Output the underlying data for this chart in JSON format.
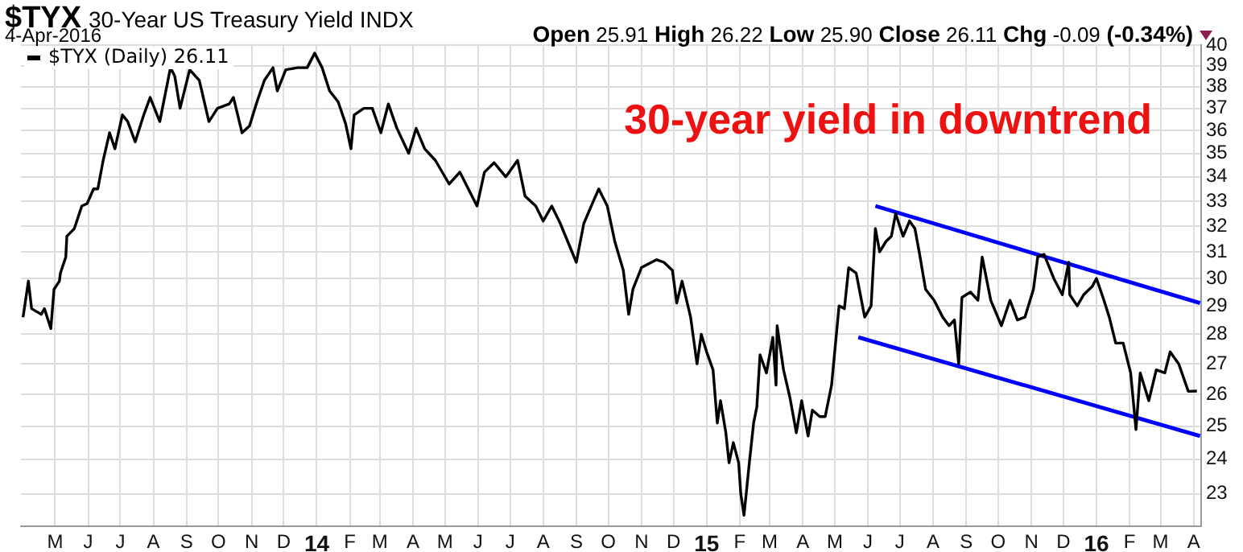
{
  "chart_data": {
    "type": "line",
    "title": "$TYX",
    "subtitle": "30-Year US Treasury Yield INDX",
    "annotations": [
      "4-Apr-2016",
      "Open 25.91 High 26.22 Low 25.90 Close 26.11 Chg -0.09 (-0.34%)",
      "30-year yield in downtrend"
    ],
    "series": [
      {
        "name": "$TYX (Daily) 26.11",
        "color": "#000000",
        "x": [
          "2013-04-01",
          "2013-04-06",
          "2013-04-09",
          "2013-04-18",
          "2013-04-21",
          "2013-04-27",
          "2013-04-30",
          "2013-05-05",
          "2013-05-06",
          "2013-05-11",
          "2013-05-12",
          "2013-05-19",
          "2013-05-26",
          "2013-05-31",
          "2013-06-06",
          "2013-06-10",
          "2013-06-15",
          "2013-06-21",
          "2013-06-26",
          "2013-07-03",
          "2013-07-08",
          "2013-07-15",
          "2013-07-23",
          "2013-07-29",
          "2013-08-07",
          "2013-08-17",
          "2013-08-21",
          "2013-08-26",
          "2013-09-04",
          "2013-09-13",
          "2013-09-22",
          "2013-09-30",
          "2013-10-11",
          "2013-10-15",
          "2013-10-23",
          "2013-10-30",
          "2013-11-06",
          "2013-11-13",
          "2013-11-21",
          "2013-11-25",
          "2013-12-03",
          "2013-12-14",
          "2013-12-23",
          "2013-12-30",
          "2014-01-06",
          "2014-01-13",
          "2014-01-21",
          "2014-01-28",
          "2014-02-02",
          "2014-02-05",
          "2014-02-14",
          "2014-02-22",
          "2014-03-02",
          "2014-03-09",
          "2014-03-17",
          "2014-03-28",
          "2014-04-04",
          "2014-04-12",
          "2014-04-22",
          "2014-05-05",
          "2014-05-15",
          "2014-05-31",
          "2014-06-07",
          "2014-06-16",
          "2014-06-27",
          "2014-07-08",
          "2014-07-15",
          "2014-07-25",
          "2014-08-01",
          "2014-08-09",
          "2014-08-17",
          "2014-09-01",
          "2014-09-08",
          "2014-09-16",
          "2014-09-22",
          "2014-09-30",
          "2014-10-07",
          "2014-10-15",
          "2014-10-20",
          "2014-10-24",
          "2014-11-01",
          "2014-11-15",
          "2014-11-22",
          "2014-11-30",
          "2014-12-04",
          "2014-12-09",
          "2014-12-17",
          "2014-12-23",
          "2014-12-27",
          "2015-01-01",
          "2015-01-07",
          "2015-01-11",
          "2015-01-14",
          "2015-01-19",
          "2015-01-22",
          "2015-01-26",
          "2015-01-31",
          "2015-02-02",
          "2015-02-05",
          "2015-02-10",
          "2015-02-14",
          "2015-02-17",
          "2015-02-20",
          "2015-02-26",
          "2015-03-04",
          "2015-03-07",
          "2015-03-08",
          "2015-03-14",
          "2015-03-20",
          "2015-03-26",
          "2015-03-31",
          "2015-04-06",
          "2015-04-10",
          "2015-04-17",
          "2015-04-22",
          "2015-04-28",
          "2015-05-05",
          "2015-05-10",
          "2015-05-14",
          "2015-05-21",
          "2015-05-29",
          "2015-06-04",
          "2015-06-08",
          "2015-06-12",
          "2015-06-18",
          "2015-06-23",
          "2015-06-27",
          "2015-06-30",
          "2015-07-04",
          "2015-07-10",
          "2015-07-15",
          "2015-07-19",
          "2015-07-25",
          "2015-08-02",
          "2015-08-10",
          "2015-08-16",
          "2015-08-21",
          "2015-08-25",
          "2015-08-28",
          "2015-09-05",
          "2015-09-12",
          "2015-09-16",
          "2015-09-24",
          "2015-10-04",
          "2015-10-12",
          "2015-10-19",
          "2015-10-26",
          "2015-11-03",
          "2015-11-07",
          "2015-11-13",
          "2015-11-22",
          "2015-11-30",
          "2015-12-06",
          "2015-12-07",
          "2015-12-14",
          "2015-12-20",
          "2015-12-28",
          "2016-01-01",
          "2016-01-08",
          "2016-01-13",
          "2016-01-19",
          "2016-01-26",
          "2016-02-02",
          "2016-02-07",
          "2016-02-11",
          "2016-02-19",
          "2016-02-26",
          "2016-03-05",
          "2016-03-10",
          "2016-03-18",
          "2016-03-22",
          "2016-03-27",
          "2016-04-04"
        ],
        "values": [
          28.6,
          29.9,
          28.9,
          28.7,
          28.9,
          28.2,
          29.6,
          29.9,
          30.2,
          30.8,
          31.6,
          31.9,
          32.8,
          32.9,
          33.5,
          33.5,
          34.7,
          35.9,
          35.2,
          36.7,
          36.4,
          35.5,
          36.7,
          37.5,
          36.4,
          38.9,
          38.5,
          37.0,
          38.8,
          38.3,
          36.4,
          37.0,
          37.2,
          37.5,
          35.9,
          36.2,
          37.3,
          38.3,
          38.9,
          37.8,
          38.8,
          38.9,
          38.9,
          39.6,
          38.9,
          37.8,
          37.3,
          36.3,
          35.2,
          36.7,
          37.0,
          37.0,
          35.9,
          37.2,
          36.1,
          35.0,
          36.1,
          35.2,
          34.7,
          33.7,
          34.2,
          32.8,
          34.2,
          34.6,
          34.0,
          34.7,
          33.2,
          32.8,
          32.2,
          32.8,
          32.1,
          30.6,
          32.1,
          32.9,
          33.5,
          32.8,
          31.4,
          30.3,
          28.7,
          29.6,
          30.4,
          30.7,
          30.6,
          30.3,
          29.1,
          29.9,
          28.6,
          27.0,
          28.0,
          27.4,
          26.8,
          25.1,
          25.8,
          24.8,
          23.9,
          24.5,
          23.9,
          23.0,
          22.4,
          23.9,
          25.1,
          25.6,
          27.3,
          26.7,
          27.9,
          26.3,
          28.3,
          26.8,
          25.9,
          24.8,
          25.8,
          24.7,
          25.5,
          25.3,
          25.3,
          26.3,
          29.0,
          28.9,
          30.4,
          30.2,
          28.6,
          29.0,
          31.9,
          31.0,
          31.4,
          31.6,
          32.5,
          32.1,
          31.6,
          32.2,
          31.9,
          31.0,
          29.6,
          29.2,
          28.6,
          28.3,
          28.5,
          27.0,
          29.3,
          29.5,
          29.2,
          30.8,
          29.2,
          28.3,
          29.2,
          28.5,
          28.6,
          29.6,
          30.8,
          30.9,
          30.0,
          29.4,
          30.6,
          29.4,
          29.0,
          29.4,
          29.7,
          30.0,
          29.2,
          28.6,
          27.7,
          27.7,
          26.7,
          24.9,
          26.7,
          25.8,
          26.8,
          26.7,
          27.4,
          27.0,
          26.6,
          26.1,
          26.11
        ]
      },
      {
        "type": "line",
        "color": "#0000ff",
        "x": [
          "2015-06-08",
          "2016-04-07"
        ],
        "values": [
          32.8,
          29.1
        ]
      },
      {
        "type": "line",
        "color": "#0000ff",
        "x": [
          "2015-05-23",
          "2016-04-07"
        ],
        "values": [
          27.9,
          24.7
        ]
      }
    ],
    "xlim": [
      "2013-03-30",
      "2016-04-08"
    ],
    "xticks": [
      {
        "value": "2013-05-01",
        "label": "M"
      },
      {
        "value": "2013-06-01",
        "label": "J"
      },
      {
        "value": "2013-07-01",
        "label": "J"
      },
      {
        "value": "2013-08-01",
        "label": "A"
      },
      {
        "value": "2013-09-01",
        "label": "S"
      },
      {
        "value": "2013-10-01",
        "label": "O"
      },
      {
        "value": "2013-11-01",
        "label": "N"
      },
      {
        "value": "2013-12-01",
        "label": "D"
      },
      {
        "value": "2014-01-01",
        "label": "14"
      },
      {
        "value": "2014-02-01",
        "label": "F"
      },
      {
        "value": "2014-03-01",
        "label": "M"
      },
      {
        "value": "2014-04-01",
        "label": "A"
      },
      {
        "value": "2014-05-01",
        "label": "M"
      },
      {
        "value": "2014-06-01",
        "label": "J"
      },
      {
        "value": "2014-07-01",
        "label": "J"
      },
      {
        "value": "2014-08-01",
        "label": "A"
      },
      {
        "value": "2014-09-01",
        "label": "S"
      },
      {
        "value": "2014-10-01",
        "label": "O"
      },
      {
        "value": "2014-11-01",
        "label": "N"
      },
      {
        "value": "2014-12-01",
        "label": "D"
      },
      {
        "value": "2015-01-01",
        "label": "15"
      },
      {
        "value": "2015-02-01",
        "label": "F"
      },
      {
        "value": "2015-03-01",
        "label": "M"
      },
      {
        "value": "2015-04-01",
        "label": "A"
      },
      {
        "value": "2015-05-01",
        "label": "M"
      },
      {
        "value": "2015-06-01",
        "label": "J"
      },
      {
        "value": "2015-07-01",
        "label": "J"
      },
      {
        "value": "2015-08-01",
        "label": "A"
      },
      {
        "value": "2015-09-01",
        "label": "S"
      },
      {
        "value": "2015-10-01",
        "label": "O"
      },
      {
        "value": "2015-11-01",
        "label": "N"
      },
      {
        "value": "2015-12-01",
        "label": "D"
      },
      {
        "value": "2016-01-01",
        "label": "16"
      },
      {
        "value": "2016-02-01",
        "label": "F"
      },
      {
        "value": "2016-03-01",
        "label": "M"
      },
      {
        "value": "2016-04-01",
        "label": "A"
      }
    ],
    "ylim": [
      22.1,
      40
    ],
    "yticks": [
      23,
      24,
      25,
      26,
      27,
      28,
      29,
      30,
      31,
      32,
      33,
      34,
      35,
      36,
      37,
      38,
      39,
      40
    ],
    "log": "y",
    "grid": true,
    "legend": "top left",
    "marker": "none",
    "line_style": "solid"
  }
}
